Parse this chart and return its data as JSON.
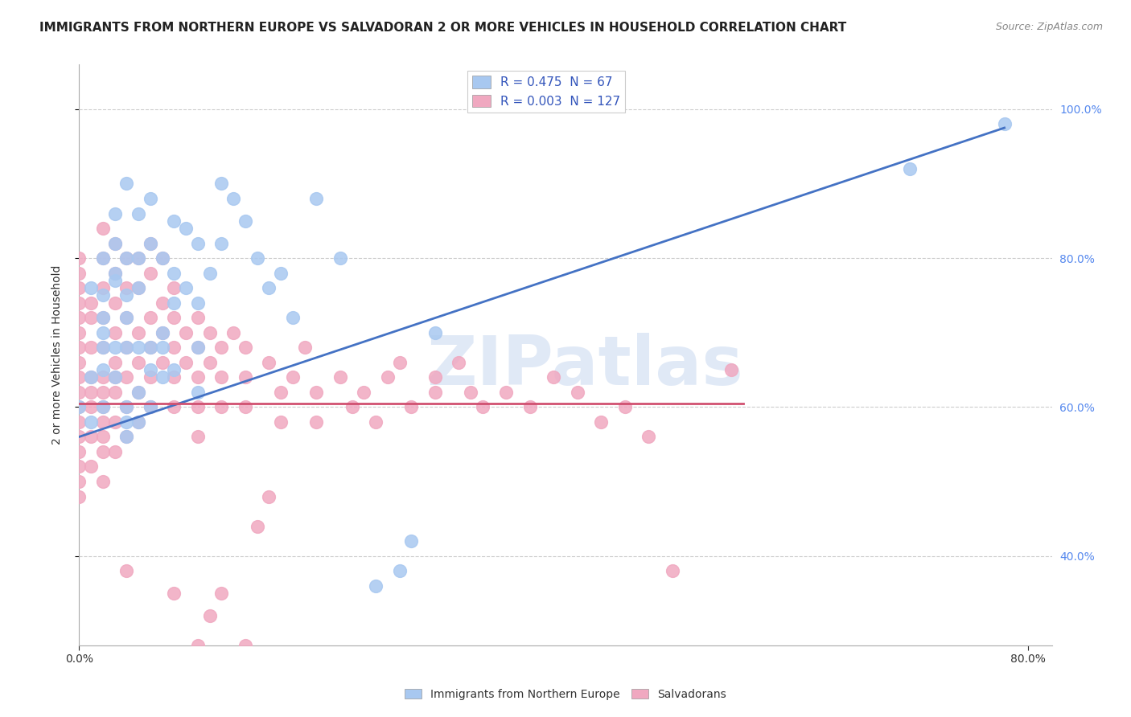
{
  "title": "IMMIGRANTS FROM NORTHERN EUROPE VS SALVADORAN 2 OR MORE VEHICLES IN HOUSEHOLD CORRELATION CHART",
  "source": "Source: ZipAtlas.com",
  "ylabel": "2 or more Vehicles in Household",
  "xlim": [
    0.0,
    0.82
  ],
  "ylim": [
    0.28,
    1.06
  ],
  "ytick_vals": [
    0.4,
    0.6,
    0.8,
    1.0
  ],
  "ytick_labels": [
    "40.0%",
    "60.0%",
    "80.0%",
    "100.0%"
  ],
  "xtick_vals": [
    0.0,
    0.8
  ],
  "xtick_labels": [
    "0.0%",
    "80.0%"
  ],
  "legend_labels": [
    "Immigrants from Northern Europe",
    "Salvadorans"
  ],
  "legend_r_n": [
    {
      "R": "0.475",
      "N": "67"
    },
    {
      "R": "0.003",
      "N": "127"
    }
  ],
  "blue_color": "#a8c8f0",
  "pink_color": "#f0a8c0",
  "line_blue": "#4472c4",
  "line_pink": "#d05070",
  "watermark": "ZIPatlas",
  "blue_scatter": [
    [
      0.0,
      0.6
    ],
    [
      0.01,
      0.76
    ],
    [
      0.02,
      0.65
    ],
    [
      0.02,
      0.72
    ],
    [
      0.02,
      0.75
    ],
    [
      0.02,
      0.8
    ],
    [
      0.03,
      0.78
    ],
    [
      0.03,
      0.82
    ],
    [
      0.03,
      0.86
    ],
    [
      0.03,
      0.77
    ],
    [
      0.04,
      0.9
    ],
    [
      0.04,
      0.8
    ],
    [
      0.04,
      0.75
    ],
    [
      0.04,
      0.68
    ],
    [
      0.04,
      0.72
    ],
    [
      0.05,
      0.86
    ],
    [
      0.05,
      0.8
    ],
    [
      0.05,
      0.76
    ],
    [
      0.05,
      0.68
    ],
    [
      0.05,
      0.62
    ],
    [
      0.06,
      0.88
    ],
    [
      0.06,
      0.82
    ],
    [
      0.06,
      0.65
    ],
    [
      0.07,
      0.8
    ],
    [
      0.07,
      0.7
    ],
    [
      0.07,
      0.68
    ],
    [
      0.08,
      0.85
    ],
    [
      0.08,
      0.78
    ],
    [
      0.08,
      0.74
    ],
    [
      0.09,
      0.84
    ],
    [
      0.09,
      0.76
    ],
    [
      0.1,
      0.82
    ],
    [
      0.1,
      0.74
    ],
    [
      0.1,
      0.68
    ],
    [
      0.11,
      0.78
    ],
    [
      0.12,
      0.9
    ],
    [
      0.12,
      0.82
    ],
    [
      0.13,
      0.88
    ],
    [
      0.14,
      0.85
    ],
    [
      0.15,
      0.8
    ],
    [
      0.16,
      0.76
    ],
    [
      0.17,
      0.78
    ],
    [
      0.18,
      0.72
    ],
    [
      0.2,
      0.88
    ],
    [
      0.22,
      0.8
    ],
    [
      0.02,
      0.68
    ],
    [
      0.03,
      0.64
    ],
    [
      0.04,
      0.6
    ],
    [
      0.04,
      0.58
    ],
    [
      0.04,
      0.56
    ],
    [
      0.05,
      0.58
    ],
    [
      0.06,
      0.6
    ],
    [
      0.06,
      0.68
    ],
    [
      0.07,
      0.64
    ],
    [
      0.08,
      0.65
    ],
    [
      0.1,
      0.62
    ],
    [
      0.02,
      0.6
    ],
    [
      0.01,
      0.64
    ],
    [
      0.01,
      0.58
    ],
    [
      0.02,
      0.7
    ],
    [
      0.03,
      0.68
    ],
    [
      0.25,
      0.36
    ],
    [
      0.27,
      0.38
    ],
    [
      0.28,
      0.42
    ],
    [
      0.3,
      0.7
    ],
    [
      0.7,
      0.92
    ],
    [
      0.78,
      0.98
    ]
  ],
  "pink_scatter": [
    [
      0.0,
      0.6
    ],
    [
      0.0,
      0.62
    ],
    [
      0.0,
      0.58
    ],
    [
      0.0,
      0.56
    ],
    [
      0.0,
      0.54
    ],
    [
      0.0,
      0.52
    ],
    [
      0.0,
      0.64
    ],
    [
      0.0,
      0.66
    ],
    [
      0.0,
      0.68
    ],
    [
      0.0,
      0.7
    ],
    [
      0.0,
      0.72
    ],
    [
      0.0,
      0.74
    ],
    [
      0.0,
      0.76
    ],
    [
      0.0,
      0.78
    ],
    [
      0.0,
      0.8
    ],
    [
      0.0,
      0.5
    ],
    [
      0.0,
      0.48
    ],
    [
      0.01,
      0.62
    ],
    [
      0.01,
      0.64
    ],
    [
      0.01,
      0.6
    ],
    [
      0.01,
      0.56
    ],
    [
      0.01,
      0.52
    ],
    [
      0.01,
      0.72
    ],
    [
      0.01,
      0.68
    ],
    [
      0.01,
      0.74
    ],
    [
      0.02,
      0.68
    ],
    [
      0.02,
      0.64
    ],
    [
      0.02,
      0.6
    ],
    [
      0.02,
      0.56
    ],
    [
      0.02,
      0.58
    ],
    [
      0.02,
      0.72
    ],
    [
      0.02,
      0.76
    ],
    [
      0.02,
      0.8
    ],
    [
      0.02,
      0.84
    ],
    [
      0.02,
      0.62
    ],
    [
      0.02,
      0.54
    ],
    [
      0.02,
      0.5
    ],
    [
      0.03,
      0.7
    ],
    [
      0.03,
      0.66
    ],
    [
      0.03,
      0.62
    ],
    [
      0.03,
      0.58
    ],
    [
      0.03,
      0.54
    ],
    [
      0.03,
      0.74
    ],
    [
      0.03,
      0.78
    ],
    [
      0.03,
      0.82
    ],
    [
      0.03,
      0.64
    ],
    [
      0.04,
      0.72
    ],
    [
      0.04,
      0.68
    ],
    [
      0.04,
      0.64
    ],
    [
      0.04,
      0.6
    ],
    [
      0.04,
      0.56
    ],
    [
      0.04,
      0.76
    ],
    [
      0.04,
      0.8
    ],
    [
      0.05,
      0.7
    ],
    [
      0.05,
      0.66
    ],
    [
      0.05,
      0.62
    ],
    [
      0.05,
      0.76
    ],
    [
      0.05,
      0.8
    ],
    [
      0.05,
      0.58
    ],
    [
      0.06,
      0.72
    ],
    [
      0.06,
      0.68
    ],
    [
      0.06,
      0.64
    ],
    [
      0.06,
      0.78
    ],
    [
      0.06,
      0.82
    ],
    [
      0.06,
      0.6
    ],
    [
      0.07,
      0.74
    ],
    [
      0.07,
      0.7
    ],
    [
      0.07,
      0.66
    ],
    [
      0.07,
      0.8
    ],
    [
      0.08,
      0.72
    ],
    [
      0.08,
      0.68
    ],
    [
      0.08,
      0.64
    ],
    [
      0.08,
      0.6
    ],
    [
      0.08,
      0.76
    ],
    [
      0.09,
      0.7
    ],
    [
      0.09,
      0.66
    ],
    [
      0.1,
      0.72
    ],
    [
      0.1,
      0.68
    ],
    [
      0.1,
      0.64
    ],
    [
      0.1,
      0.6
    ],
    [
      0.1,
      0.56
    ],
    [
      0.11,
      0.7
    ],
    [
      0.11,
      0.66
    ],
    [
      0.12,
      0.68
    ],
    [
      0.12,
      0.64
    ],
    [
      0.12,
      0.6
    ],
    [
      0.13,
      0.7
    ],
    [
      0.14,
      0.68
    ],
    [
      0.14,
      0.64
    ],
    [
      0.14,
      0.6
    ],
    [
      0.15,
      0.44
    ],
    [
      0.16,
      0.48
    ],
    [
      0.16,
      0.66
    ],
    [
      0.17,
      0.62
    ],
    [
      0.17,
      0.58
    ],
    [
      0.18,
      0.64
    ],
    [
      0.19,
      0.68
    ],
    [
      0.2,
      0.62
    ],
    [
      0.2,
      0.58
    ],
    [
      0.22,
      0.64
    ],
    [
      0.23,
      0.6
    ],
    [
      0.24,
      0.62
    ],
    [
      0.25,
      0.58
    ],
    [
      0.26,
      0.64
    ],
    [
      0.27,
      0.66
    ],
    [
      0.28,
      0.6
    ],
    [
      0.3,
      0.64
    ],
    [
      0.3,
      0.62
    ],
    [
      0.32,
      0.66
    ],
    [
      0.33,
      0.62
    ],
    [
      0.34,
      0.6
    ],
    [
      0.36,
      0.62
    ],
    [
      0.38,
      0.6
    ],
    [
      0.4,
      0.64
    ],
    [
      0.42,
      0.62
    ],
    [
      0.44,
      0.58
    ],
    [
      0.46,
      0.6
    ],
    [
      0.48,
      0.56
    ],
    [
      0.5,
      0.38
    ],
    [
      0.55,
      0.65
    ],
    [
      0.08,
      0.35
    ],
    [
      0.1,
      0.28
    ],
    [
      0.11,
      0.32
    ],
    [
      0.12,
      0.35
    ],
    [
      0.14,
      0.26
    ],
    [
      0.14,
      0.28
    ],
    [
      0.04,
      0.38
    ]
  ],
  "title_fontsize": 11,
  "source_fontsize": 9,
  "axis_label_fontsize": 10,
  "tick_fontsize": 10,
  "legend_fontsize": 11
}
